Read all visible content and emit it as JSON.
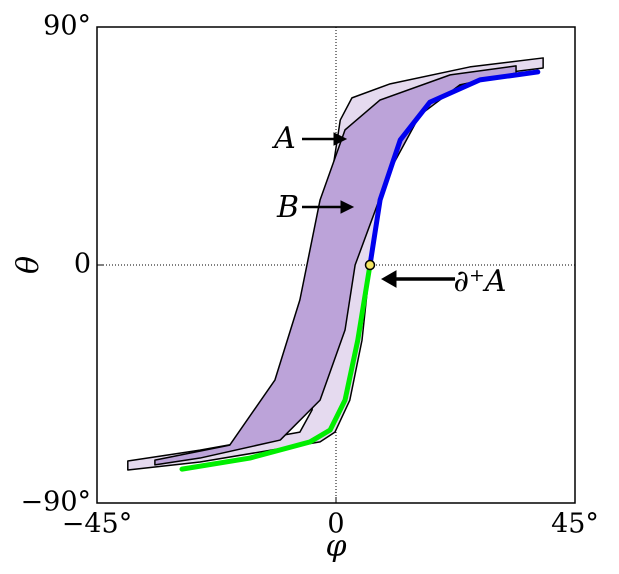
{
  "chart_data": {
    "type": "region",
    "xlabel": "φ",
    "ylabel": "θ",
    "xlim": [
      -45,
      45
    ],
    "ylim": [
      -90,
      90
    ],
    "xticks": [
      {
        "value": -45,
        "label": "−45°"
      },
      0,
      {
        "value": 45,
        "label": "45°"
      }
    ],
    "yticks": [
      {
        "value": -90,
        "label": "−90°"
      },
      0,
      {
        "value": 90,
        "label": "90°"
      }
    ],
    "grid": true,
    "series": [
      {
        "kind": "fill",
        "color": "#e5daef",
        "x": [
          -39.2,
          -39.2,
          -25.6,
          -6.8,
          -4.5,
          -3.0,
          -1.5,
          0.8,
          3.0,
          10.2,
          25.2,
          39.0,
          39.0,
          27.1,
          17.7,
          12.1,
          8.3,
          6.4,
          4.9,
          2.6,
          -0.2,
          -3.0,
          -25.6
        ],
        "y": [
          -77.5,
          -74.1,
          -70.0,
          -63.2,
          -54.8,
          -24.6,
          24.6,
          54.8,
          63.2,
          68.5,
          74.9,
          78.3,
          74.5,
          71.5,
          62.4,
          47.3,
          24.6,
          0,
          -28.4,
          -51.1,
          -63.2,
          -66.9,
          -74.5
        ]
      },
      {
        "kind": "fill",
        "color": "#bca3d9",
        "x": [
          -34.1,
          -34.1,
          -20.0,
          -11.5,
          -6.8,
          -3.0,
          1.7,
          8.3,
          21.5,
          33.9,
          33.9,
          23.3,
          15.8,
          10.2,
          3.6,
          1.7,
          -3.0,
          -10.5,
          -25.6
        ],
        "y": [
          -75.6,
          -73.8,
          -68.1,
          -43.5,
          -13.2,
          24.6,
          51.1,
          62.4,
          71.9,
          75.3,
          72.6,
          68.1,
          56.7,
          35.9,
          0,
          -24.6,
          -51.1,
          -66.2,
          -73.0
        ]
      },
      {
        "kind": "line",
        "color": "#00ee00",
        "x": [
          -29.0,
          -16.2,
          -4.9,
          -1.1,
          1.7,
          4.1,
          6.4
        ],
        "y": [
          -77.2,
          -73.0,
          -66.9,
          -62.4,
          -51.1,
          -28.4,
          0
        ]
      },
      {
        "kind": "line",
        "color": "#0000ee",
        "x": [
          6.4,
          8.3,
          12.1,
          17.7,
          27.1,
          38.0
        ],
        "y": [
          0,
          24.6,
          47.3,
          61.6,
          70.0,
          73.0
        ]
      }
    ],
    "point": {
      "x": 6.4,
      "y": 0,
      "color": "#f5e663"
    },
    "annotations": [
      "A",
      "B",
      "∂⁺A"
    ]
  }
}
